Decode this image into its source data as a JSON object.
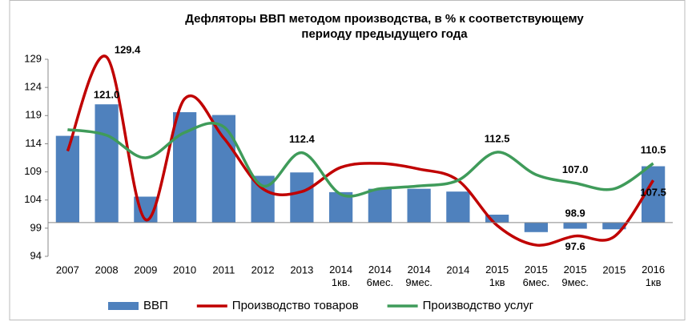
{
  "chart_data": {
    "type": "combo",
    "title": [
      "Дефляторы ВВП методом производства, в % к соответствующему",
      "периоду предыдущего года"
    ],
    "categories": [
      "2007",
      "2008",
      "2009",
      "2010",
      "2011",
      "2012",
      "2013",
      "2014 1кв.",
      "2014 6мес.",
      "2014 9мес.",
      "2014",
      "2015 1кв",
      "2015 6мес.",
      "2015 9мес.",
      "2015",
      "2016 1кв"
    ],
    "ylim": [
      94,
      129
    ],
    "yticks": [
      94,
      99,
      104,
      109,
      114,
      119,
      124,
      129
    ],
    "x_axis_at": 100,
    "grid": false,
    "legend": "bottom",
    "series": [
      {
        "name": "ВВП",
        "type": "bar",
        "color": "#4f81bd",
        "label_color": "#1f3864",
        "values": [
          115.4,
          121.0,
          104.6,
          119.6,
          119.1,
          108.3,
          108.9,
          105.4,
          106.0,
          106.0,
          105.5,
          101.4,
          98.3,
          98.9,
          98.8,
          110.0
        ],
        "value_labels": [
          null,
          "121.0",
          null,
          null,
          null,
          null,
          null,
          null,
          null,
          null,
          null,
          null,
          null,
          "98.9",
          null,
          null
        ]
      },
      {
        "name": "Производство товаров",
        "type": "line",
        "color": "#c00000",
        "label_color": "#c00000",
        "values": [
          112.7,
          129.4,
          100.5,
          122.0,
          115.0,
          106.0,
          105.5,
          109.8,
          110.5,
          109.5,
          107.5,
          99.5,
          96.0,
          97.6,
          97.5,
          107.5
        ],
        "value_labels": [
          null,
          "129.4",
          null,
          null,
          null,
          null,
          null,
          null,
          null,
          null,
          null,
          null,
          null,
          "97.6",
          null,
          "107.5"
        ]
      },
      {
        "name": "Производство услуг",
        "type": "line",
        "color": "#3f9b5a",
        "label_color": "#2e7d1e",
        "values": [
          116.5,
          115.5,
          111.5,
          116.0,
          117.0,
          106.5,
          112.4,
          105.0,
          106.0,
          106.5,
          107.5,
          112.5,
          108.5,
          107.0,
          106.0,
          110.5
        ],
        "value_labels": [
          null,
          null,
          null,
          null,
          null,
          null,
          "112.4",
          null,
          null,
          null,
          null,
          "112.5",
          null,
          "107.0",
          null,
          "110.5"
        ]
      }
    ]
  }
}
